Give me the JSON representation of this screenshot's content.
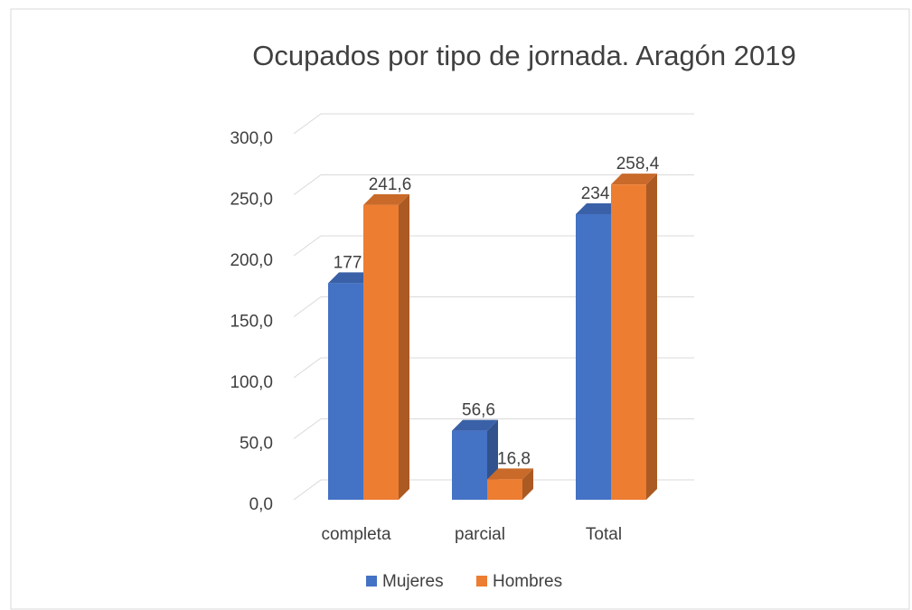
{
  "chart_data": {
    "type": "bar3d",
    "title": "Ocupados por tipo de jornada. Aragón 2019",
    "categories": [
      "completa",
      "parcial",
      "Total"
    ],
    "series": [
      {
        "name": "Mujeres",
        "color": "#4472c4",
        "values": [
          177.5,
          56.6,
          234.1
        ],
        "value_labels": [
          "177,5",
          "56,6",
          "234,1"
        ]
      },
      {
        "name": "Hombres",
        "color": "#ed7d31",
        "values": [
          241.6,
          16.8,
          258.4
        ],
        "value_labels": [
          "241,6",
          "16,8",
          "258,4"
        ]
      }
    ],
    "ylim": [
      0,
      300
    ],
    "yticks": [
      {
        "value": 0,
        "label": "0,0"
      },
      {
        "value": 50,
        "label": "50,0"
      },
      {
        "value": 100,
        "label": "100,0"
      },
      {
        "value": 150,
        "label": "150,0"
      },
      {
        "value": 200,
        "label": "200,0"
      },
      {
        "value": 250,
        "label": "250,0"
      },
      {
        "value": 300,
        "label": "300,0"
      }
    ],
    "grid": true,
    "legend": "bottom"
  }
}
